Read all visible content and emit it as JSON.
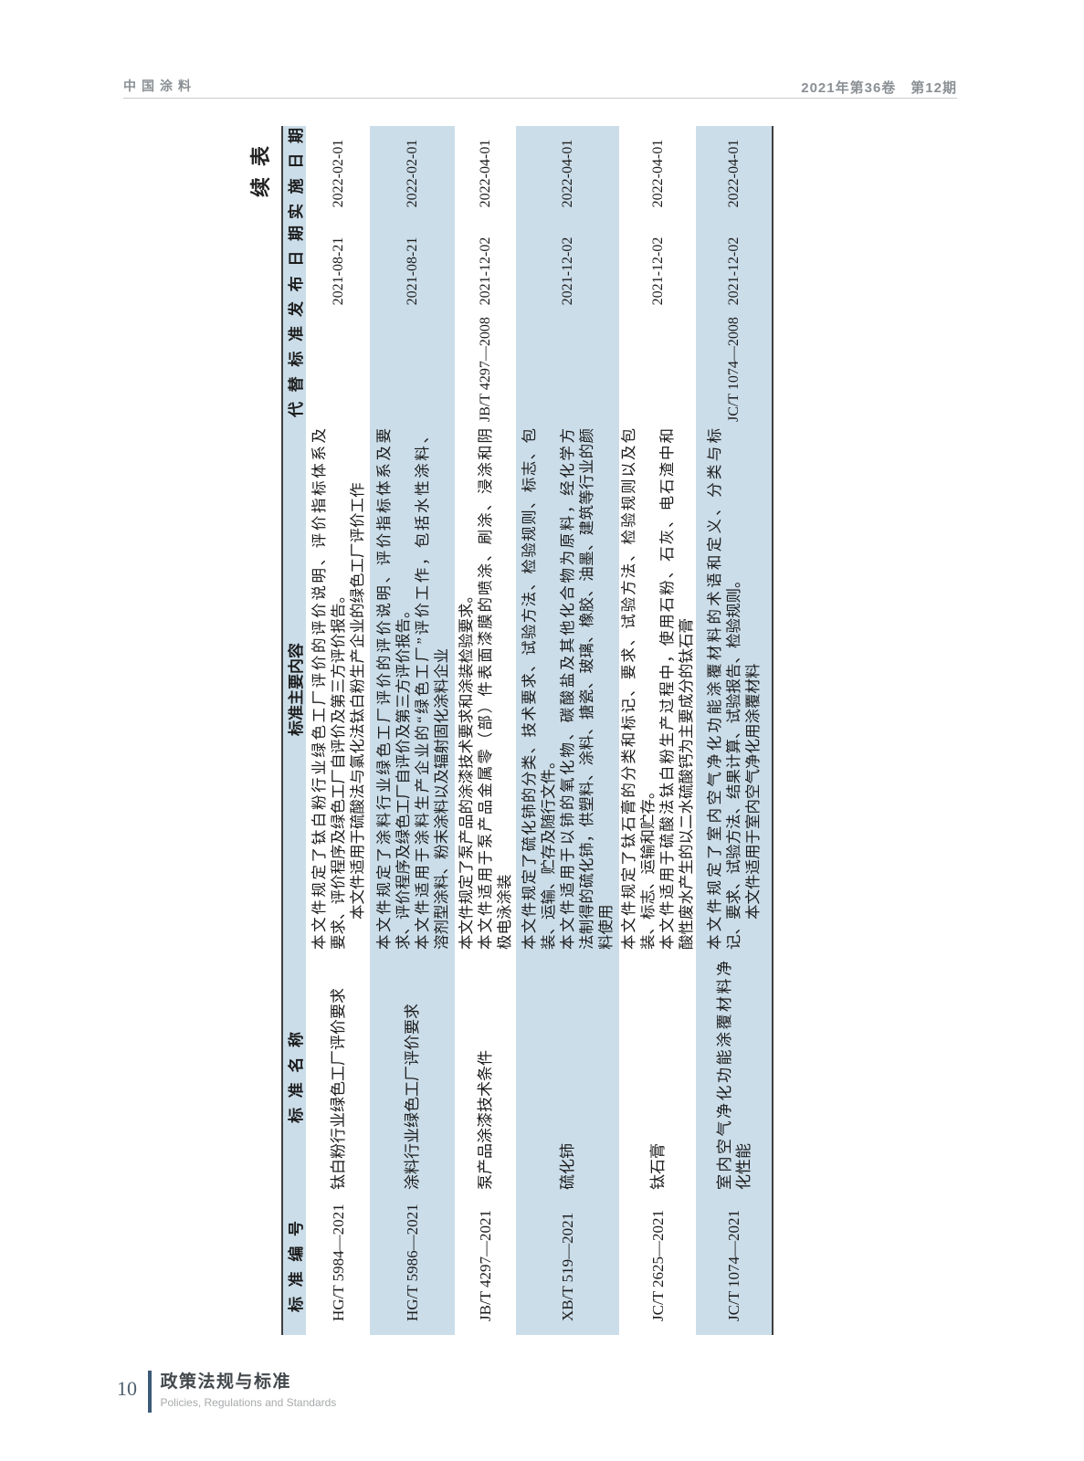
{
  "page_header": {
    "journal_name": "中国涂料",
    "issue_info": "2021年第36卷　第12期"
  },
  "colors": {
    "row_alt_bg": "#cbdde9",
    "table_rule": "#3f3f3f",
    "page_header_text": "#8b9094",
    "footer_accent": "#3c5a77"
  },
  "table": {
    "continued_label": "续表",
    "columns": [
      "标准编号",
      "标准名称",
      "标准主要内容",
      "代替标准",
      "发布日期",
      "实施日期"
    ],
    "rows": [
      {
        "number": "HG/T 5984—2021",
        "name_lines": [
          "钛白粉行业绿色工厂评价要求"
        ],
        "content_lines": [
          "本文件规定了钛白粉行业绿色工厂评价的评价说明、评价指标体系及",
          "要求、评价程序及绿色工厂自评价及第三方评价报告。",
          "　　本文件适用于硫酸法与氯化法钛白粉生产企业的绿色工厂评价工作"
        ],
        "replaces": "",
        "issued": "2021-08-21",
        "effective": "2022-02-01"
      },
      {
        "number": "HG/T 5986—2021",
        "name_lines": [
          "涂料行业绿色工厂评价要求"
        ],
        "content_lines": [
          "本文件规定了涂料行业绿色工厂评价的评价说明、评价指标体系及要",
          "求、评价程序及绿色工厂自评价及第三方评价报告。",
          "本文件适用于涂料生产企业的“绿色工厂”评价工作，包括水性涂料、",
          "溶剂型涂料、粉末涂料以及辐射固化涂料企业"
        ],
        "replaces": "",
        "issued": "2021-08-21",
        "effective": "2022-02-01"
      },
      {
        "number": "JB/T 4297—2021",
        "name_lines": [
          "泵产品涂漆技术条件"
        ],
        "content_lines": [
          "本文件规定了泵产品的涂漆技术要求和涂装检验要求。",
          "本文件适用于泵产品金属零（部）件表面漆膜的喷涂、刷涂、浸涂和阴",
          "极电泳涂装"
        ],
        "replaces": "JB/T 4297—2008",
        "issued": "2021-12-02",
        "effective": "2022-04-01"
      },
      {
        "number": "XB/T 519—2021",
        "name_lines": [
          "硫化铈"
        ],
        "content_lines": [
          "本文件规定了硫化铈的分类、技术要求、试验方法、检验规则、标志、包",
          "装、运输、贮存及随行文件。",
          "本文件适用于以铈的氧化物、碳酸盐及其他化合物为原料，经化学方",
          "法制得的硫化铈，供塑料、涂料、搪瓷、玻璃、橡胶、油墨、建筑等行业的颜",
          "料使用"
        ],
        "replaces": "",
        "issued": "2021-12-02",
        "effective": "2022-04-01"
      },
      {
        "number": "JC/T 2625—2021",
        "name_lines": [
          "钛石膏"
        ],
        "content_lines": [
          "本文件规定了钛石膏的分类和标记、要求、试验方法、检验规则以及包",
          "装、标志、运输和贮存。",
          "本文件适用于硫酸法钛白粉生产过程中，使用石粉、石灰、电石渣中和",
          "酸性废水产生的以二水硫酸钙为主要成分的钛石膏"
        ],
        "replaces": "",
        "issued": "2021-12-02",
        "effective": "2022-04-01"
      },
      {
        "number": "JC/T 1074—2021",
        "name_lines": [
          "室内空气净化功能涂覆材料净",
          "化性能"
        ],
        "content_lines": [
          "本文件规定了室内空气净化功能涂覆材料的术语和定义、分类与标",
          "记、要求、试验方法、结果计算、试验报告、检验规则。",
          "　　本文件适用于室内空气净化用涂覆材料"
        ],
        "replaces": "JC/T 1074—2008",
        "issued": "2021-12-02",
        "effective": "2022-04-01"
      }
    ]
  },
  "footer": {
    "page_number": "10",
    "section_title_cn": "政策法规与标准",
    "section_title_en": "Policies, Regulations and Standards"
  }
}
